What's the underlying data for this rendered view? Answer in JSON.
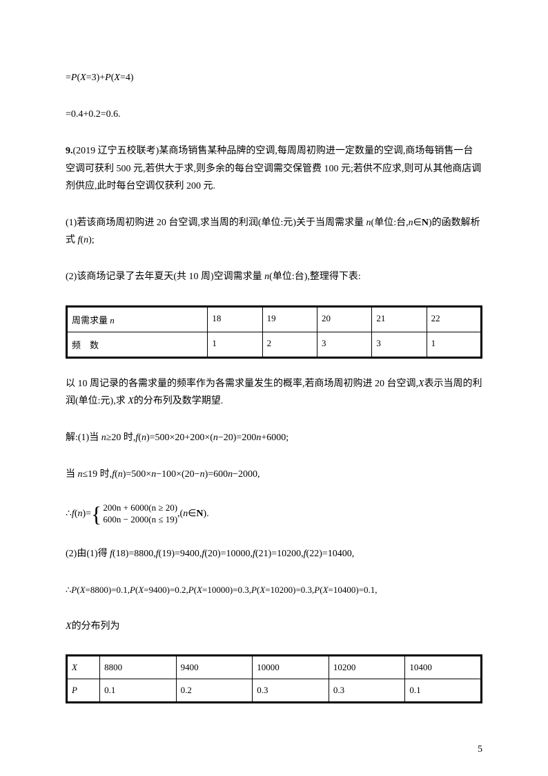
{
  "line1": "=P(X=3)+P(X=4)",
  "line2": "=0.4+0.2=0.6.",
  "problem_num": "9.",
  "problem_source": "(2019 辽宁五校联考)",
  "problem_text": "某商场销售某种品牌的空调,每周周初购进一定数量的空调,商场每销售一台空调可获利 500 元,若供大于求,则多余的每台空调需交保管费 100 元;若供不应求,则可从其他商店调剂供应,此时每台空调仅获利 200 元.",
  "part1": "(1)若该商场周初购进 20 台空调,求当周的利润(单位:元)关于当周需求量 n(单位:台,n∈N)的函数解析式 f(n);",
  "part2": "(2)该商场记录了去年夏天(共 10 周)空调需求量 n(单位:台),整理得下表:",
  "table1": {
    "row1": [
      "周需求量 n",
      "18",
      "19",
      "20",
      "21",
      "22"
    ],
    "row2": [
      "频　数",
      "1",
      "2",
      "3",
      "3",
      "1"
    ]
  },
  "text_after_t1": "以 10 周记录的各需求量的频率作为各需求量发生的概率,若商场周初购进 20 台空调,X表示当周的利润(单位:元),求 X的分布列及数学期望.",
  "sol1": "解:(1)当 n≥20 时,f(n)=500×20+200×(n−20)=200n+6000;",
  "sol2": "当 n≤19 时,f(n)=500×n−100×(20−n)=600n−2000,",
  "formula_prefix": "∴f(n)=",
  "formula_case1": "200n + 6000(n ≥ 20)",
  "formula_case2": "600n − 2000(n ≤ 19)",
  "formula_suffix": ",(n∈N).",
  "sol3": "(2)由(1)得 f(18)=8800,f(19)=9400,f(20)=10000,f(21)=10200,f(22)=10400,",
  "sol4": "∴P(X=8800)=0.1,P(X=9400)=0.2,P(X=10000)=0.3,P(X=10200)=0.3,P(X=10400)=0.1,",
  "sol5": "X的分布列为",
  "table2": {
    "row1": [
      "X",
      "8800",
      "9400",
      "10000",
      "10200",
      "10400"
    ],
    "row2": [
      "P",
      "0.1",
      "0.2",
      "0.3",
      "0.3",
      "0.1"
    ]
  },
  "page_number": "5"
}
